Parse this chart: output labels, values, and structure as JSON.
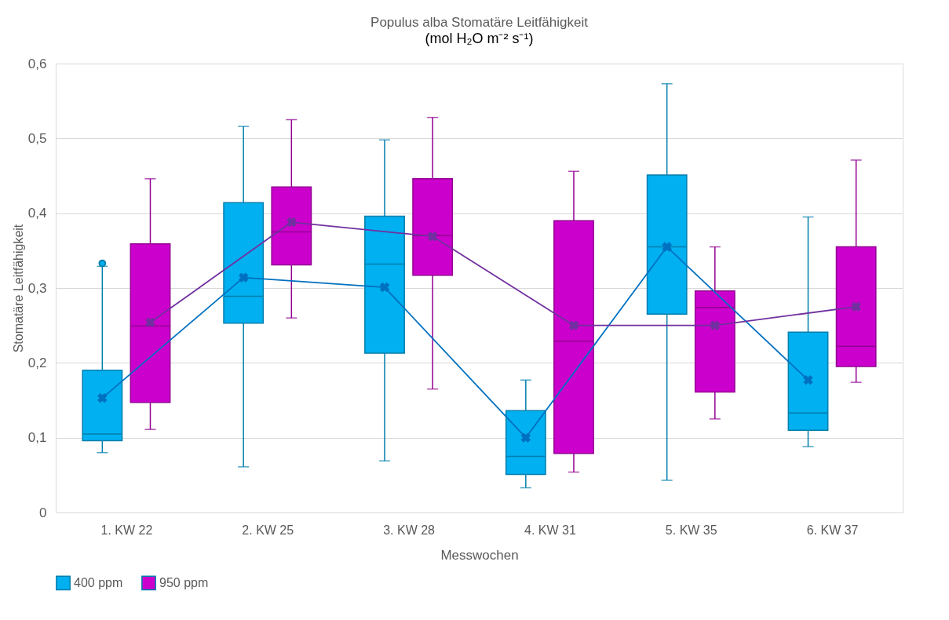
{
  "chart_data": {
    "type": "box",
    "title": "Populus alba Stomatäre Leitfähigkeit",
    "subtitle": "(mol H₂O m⁻² s⁻¹)",
    "xlabel": "Messwochen",
    "ylabel": "Stomatäre Leitfähigkeit",
    "categories": [
      "1. KW 22",
      "2. KW 25",
      "3. KW 28",
      "4. KW 31",
      "5. KW 35",
      "6. KW 37"
    ],
    "series": [
      {
        "name": "400 ppm",
        "color": "#00b0f0",
        "boxes": [
          {
            "low": 0.08,
            "q1": 0.096,
            "median": 0.105,
            "q3": 0.19,
            "high": 0.329,
            "outliers": [
              0.333
            ]
          },
          {
            "low": 0.061,
            "q1": 0.253,
            "median": 0.289,
            "q3": 0.414,
            "high": 0.516
          },
          {
            "low": 0.069,
            "q1": 0.213,
            "median": 0.332,
            "q3": 0.396,
            "high": 0.498
          },
          {
            "low": 0.033,
            "q1": 0.051,
            "median": 0.075,
            "q3": 0.136,
            "high": 0.177
          },
          {
            "low": 0.043,
            "q1": 0.265,
            "median": 0.355,
            "q3": 0.451,
            "high": 0.573
          },
          {
            "low": 0.088,
            "q1": 0.11,
            "median": 0.133,
            "q3": 0.241,
            "high": 0.395
          }
        ]
      },
      {
        "name": "950 ppm",
        "color": "#cc00cc",
        "boxes": [
          {
            "low": 0.111,
            "q1": 0.147,
            "median": 0.249,
            "q3": 0.359,
            "high": 0.446
          },
          {
            "low": 0.26,
            "q1": 0.331,
            "median": 0.375,
            "q3": 0.435,
            "high": 0.525
          },
          {
            "low": 0.165,
            "q1": 0.317,
            "median": 0.37,
            "q3": 0.446,
            "high": 0.528
          },
          {
            "low": 0.054,
            "q1": 0.079,
            "median": 0.229,
            "q3": 0.39,
            "high": 0.456
          },
          {
            "low": 0.125,
            "q1": 0.161,
            "median": 0.274,
            "q3": 0.296,
            "high": 0.355
          },
          {
            "low": 0.174,
            "q1": 0.195,
            "median": 0.222,
            "q3": 0.355,
            "high": 0.471
          }
        ]
      },
      {
        "type": "line",
        "color": "#0070c0",
        "values": [
          0.153,
          0.314,
          0.301,
          0.1,
          0.355,
          0.177
        ]
      },
      {
        "type": "line",
        "color": "#7030a0",
        "values": [
          0.254,
          0.388,
          0.369,
          0.25,
          0.25,
          0.275
        ]
      }
    ],
    "ylim": [
      0,
      0.6
    ],
    "yticks": [
      0,
      {
        "value": 0.1,
        "label": "0,1"
      },
      {
        "value": 0.2,
        "label": "0,2"
      },
      {
        "value": 0.3,
        "label": "0,3"
      },
      {
        "value": 0.4,
        "label": "0,4"
      },
      {
        "value": 0.5,
        "label": "0,5"
      },
      {
        "value": 0.6,
        "label": "0,6"
      }
    ],
    "grid": "y",
    "legend": "bottom",
    "marker": "cross"
  }
}
